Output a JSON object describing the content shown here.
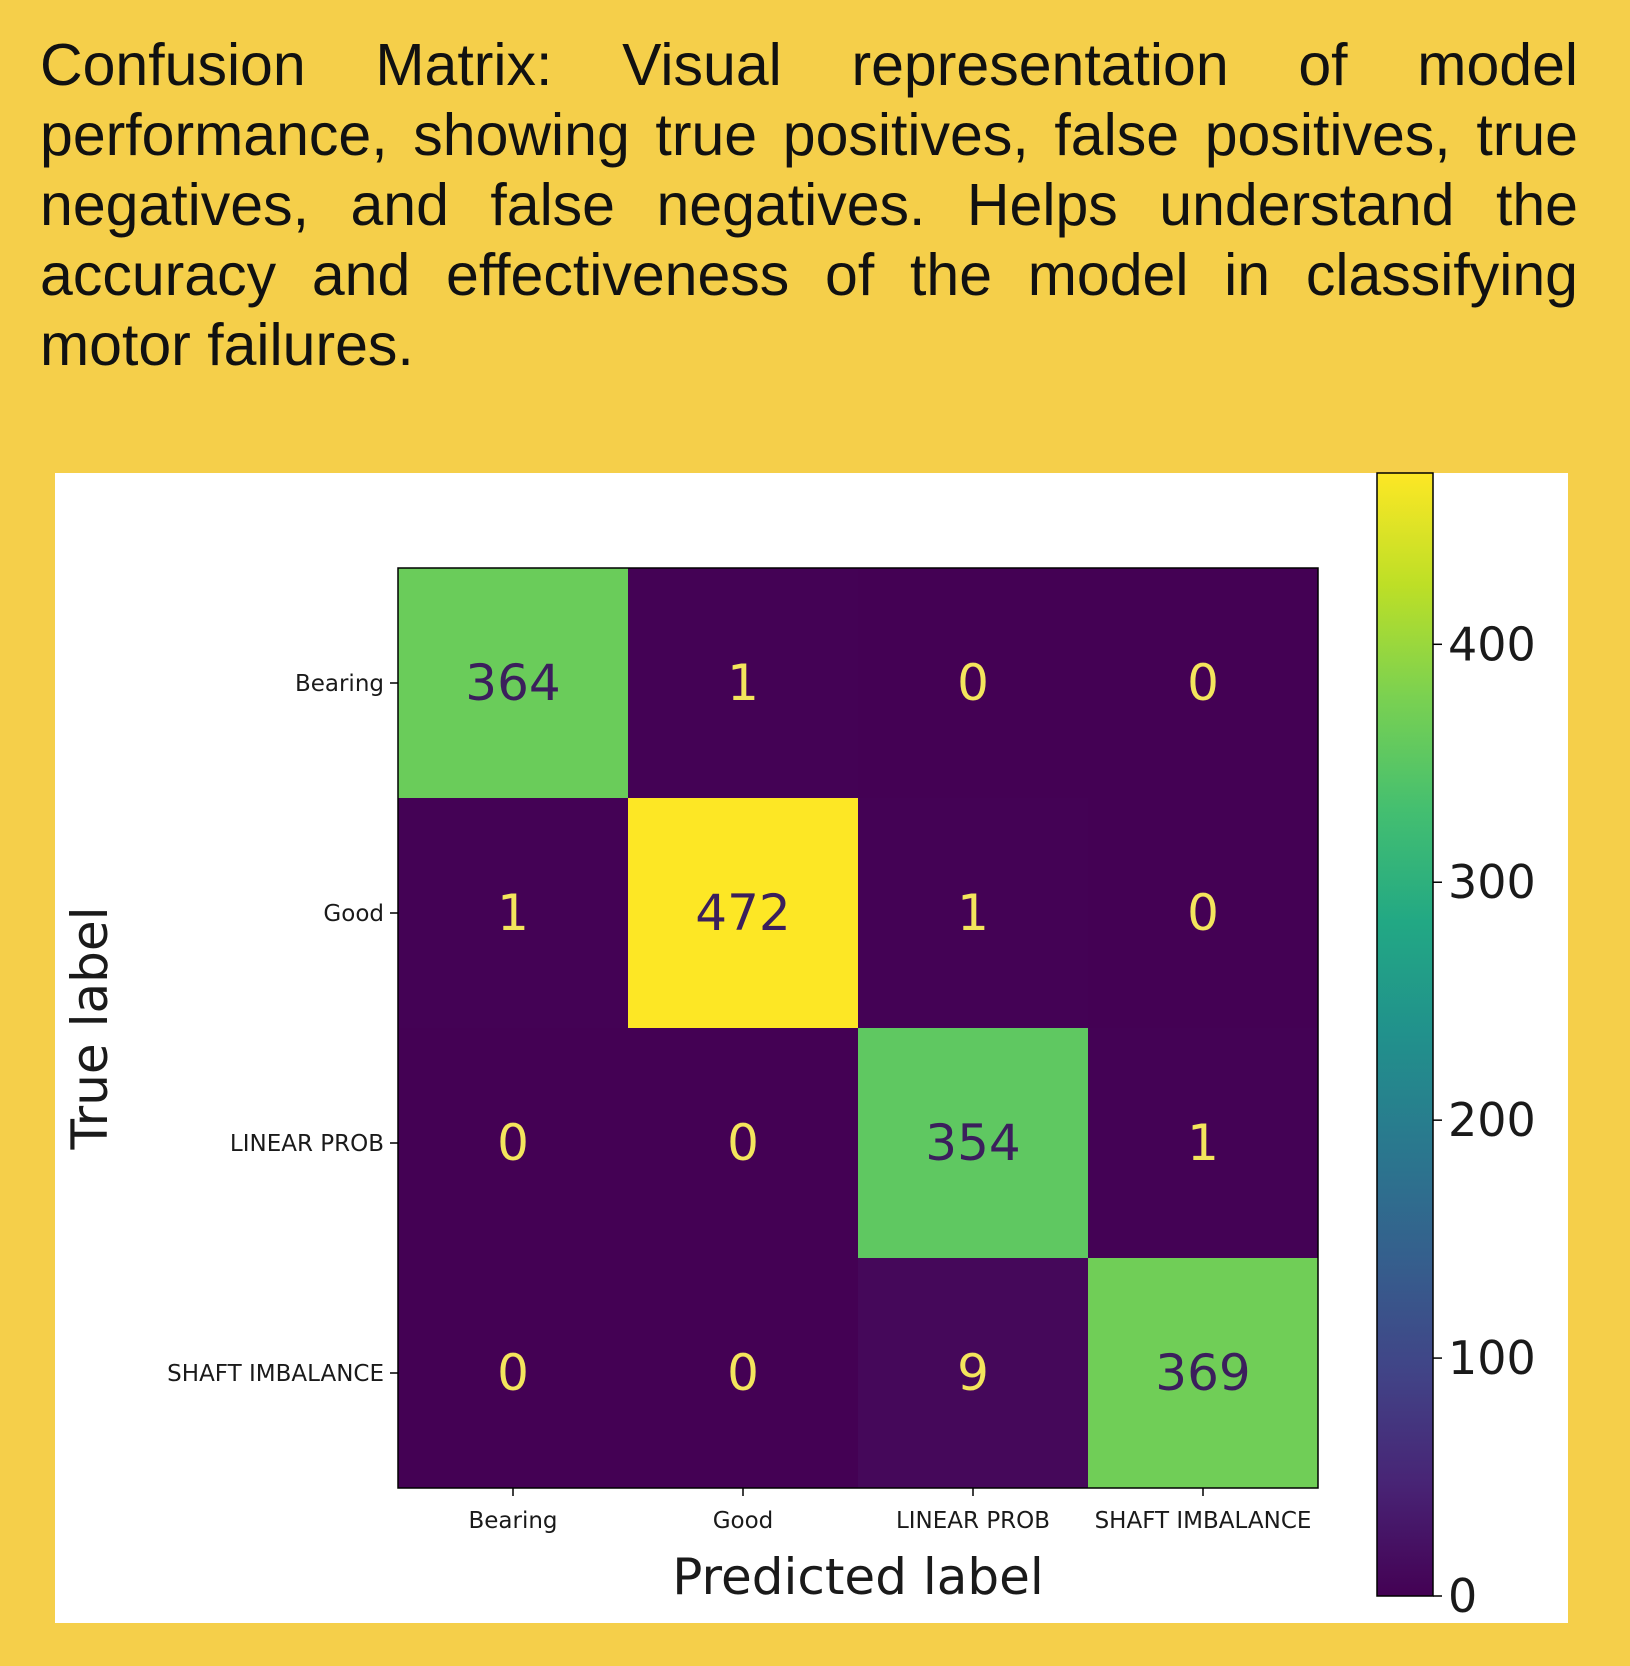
{
  "description": "Confusion Matrix: Visual representation of model performance, showing true positives, false positives, true negatives, and false negatives. Helps understand the accuracy and effectiveness of the model in classifying motor failures.",
  "chart_data": {
    "type": "heatmap",
    "title": "",
    "xlabel": "Predicted label",
    "ylabel": "True label",
    "x_categories": [
      "Bearing",
      "Good",
      "LINEAR PROB",
      "SHAFT IMBALANCE"
    ],
    "y_categories": [
      "Bearing",
      "Good",
      "LINEAR PROB",
      "SHAFT IMBALANCE"
    ],
    "values": [
      [
        364,
        1,
        0,
        0
      ],
      [
        1,
        472,
        1,
        0
      ],
      [
        0,
        0,
        354,
        1
      ],
      [
        0,
        0,
        9,
        369
      ]
    ],
    "colormap": "viridis",
    "colorbar": {
      "range": [
        0,
        472
      ],
      "ticks": [
        0,
        100,
        200,
        300,
        400
      ],
      "tick_labels": [
        "0",
        "100",
        "200",
        "300",
        "400"
      ]
    },
    "grid": false,
    "text_colors": {
      "on_dark": "#f4e55c",
      "on_light": "#3b1f5c"
    }
  }
}
